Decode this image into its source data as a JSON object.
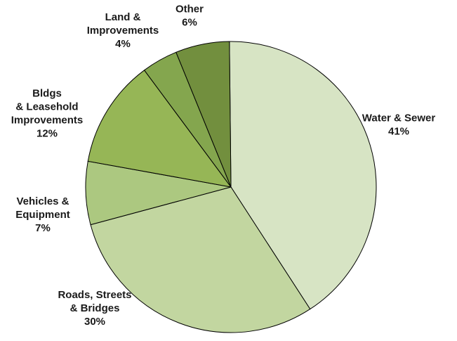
{
  "chart_data": {
    "type": "pie",
    "title": "",
    "slices": [
      {
        "label_lines": [
          "Water & Sewer"
        ],
        "pct_text": "41%",
        "value": 41,
        "color": "#d7e4c4"
      },
      {
        "label_lines": [
          "Roads, Streets",
          "& Bridges"
        ],
        "pct_text": "30%",
        "value": 30,
        "color": "#c2d6a0"
      },
      {
        "label_lines": [
          "Vehicles &",
          "Equipment"
        ],
        "pct_text": "7%",
        "value": 7,
        "color": "#acc880"
      },
      {
        "label_lines": [
          "Bldgs",
          "& Leasehold",
          "Improvements"
        ],
        "pct_text": "12%",
        "value": 12,
        "color": "#96b656"
      },
      {
        "label_lines": [
          "Land &",
          "Improvements"
        ],
        "pct_text": "4%",
        "value": 4,
        "color": "#84a64e"
      },
      {
        "label_lines": [
          "Other"
        ],
        "pct_text": "6%",
        "value": 6,
        "color": "#728f3e"
      }
    ]
  }
}
